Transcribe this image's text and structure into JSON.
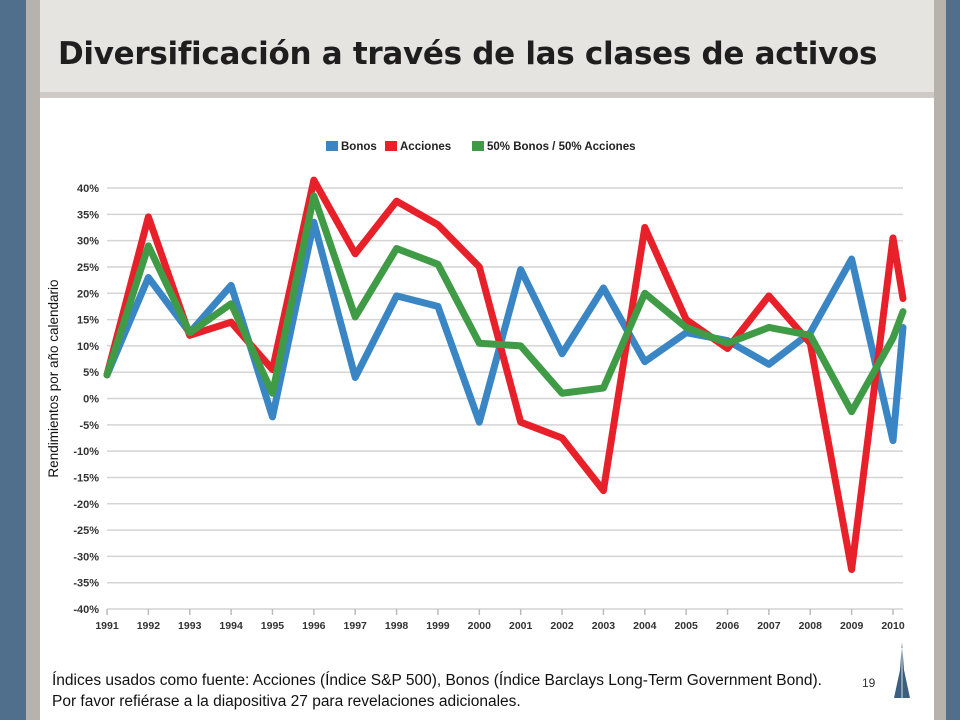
{
  "slide": {
    "title": "Diversificación a través de las clases de activos",
    "footnote": "Índices usados como fuente:  Acciones (Índice S&P 500), Bonos (Índice Barclays Long-Term Government Bond). Por favor refiérase a la diapositiva 27 para revelaciones adicionales.",
    "page_number": "19"
  },
  "chart_data": {
    "type": "line",
    "ylabel": "Rendimientos por año calendario",
    "xlabel": "",
    "ylim": [
      -40,
      40
    ],
    "yticks": [
      40,
      35,
      30,
      25,
      20,
      15,
      10,
      5,
      0,
      -5,
      -10,
      -15,
      -20,
      -25,
      -30,
      -35,
      -40
    ],
    "ytick_labels": [
      "40%",
      "35%",
      "30%",
      "25%",
      "20%",
      "15%",
      "10%",
      "5%",
      "0%",
      "-5%",
      "-10%",
      "-15%",
      "-20%",
      "-25%",
      "-30%",
      "-35%",
      "-40%"
    ],
    "categories": [
      "1991",
      "1992",
      "1993",
      "1994",
      "1995",
      "1996",
      "1997",
      "1998",
      "1999",
      "2000",
      "2001",
      "2002",
      "2003",
      "2004",
      "2005",
      "2006",
      "2007",
      "2008",
      "2009",
      "2010"
    ],
    "grid": true,
    "legend_position": "top",
    "series": [
      {
        "name": "Bonos",
        "color": "#3a86c4",
        "values": [
          4.5,
          23,
          12.5,
          21.5,
          -3.5,
          33.5,
          4,
          19.5,
          17.5,
          -4.5,
          24.5,
          8.5,
          21,
          7,
          12.5,
          11,
          6.5,
          12.5,
          26.5,
          -8
        ]
      },
      {
        "name": "Acciones",
        "color": "#e8202a",
        "values": [
          4.5,
          34.5,
          12,
          14.5,
          5.5,
          41.5,
          27.5,
          37.5,
          33,
          25,
          -4.5,
          -7.5,
          -17.5,
          32.5,
          15,
          9.5,
          19.5,
          10.5,
          -32.5,
          30.5
        ]
      },
      {
        "name": "50% Bonos / 50% Acciones",
        "color": "#3f9b45",
        "values": [
          4.5,
          29,
          12.5,
          18,
          1,
          38.5,
          15.5,
          28.5,
          25.5,
          10.5,
          10,
          1,
          2,
          20,
          13.5,
          10.5,
          13.5,
          12,
          -2.5,
          11.5
        ]
      }
    ],
    "extra_points_2010": [
      13.5,
      19,
      16.5
    ]
  }
}
